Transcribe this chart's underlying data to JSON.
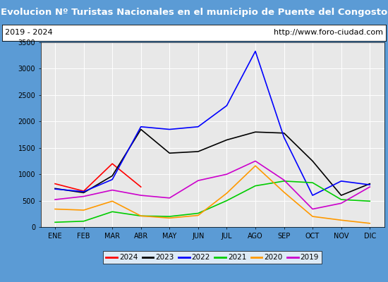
{
  "title": "Evolucion Nº Turistas Nacionales en el municipio de Puente del Congosto",
  "subtitle_left": "2019 - 2024",
  "subtitle_right": "http://www.foro-ciudad.com",
  "months": [
    "ENE",
    "FEB",
    "MAR",
    "ABR",
    "MAY",
    "JUN",
    "JUL",
    "AGO",
    "SEP",
    "OCT",
    "NOV",
    "DIC"
  ],
  "series": {
    "2024": [
      820,
      680,
      1200,
      760,
      null,
      null,
      null,
      null,
      null,
      null,
      null,
      null
    ],
    "2023": [
      730,
      650,
      970,
      1850,
      1400,
      1430,
      1650,
      1800,
      1780,
      1250,
      600,
      820
    ],
    "2022": [
      720,
      670,
      900,
      1900,
      1850,
      1900,
      2300,
      3330,
      1700,
      600,
      870,
      800
    ],
    "2021": [
      90,
      110,
      290,
      210,
      200,
      260,
      500,
      780,
      870,
      840,
      520,
      490
    ],
    "2020": [
      340,
      320,
      490,
      210,
      170,
      220,
      640,
      1160,
      660,
      200,
      130,
      70
    ],
    "2019": [
      520,
      580,
      700,
      600,
      550,
      880,
      1000,
      1250,
      890,
      340,
      450,
      760
    ]
  },
  "colors": {
    "2024": "#ff0000",
    "2023": "#000000",
    "2022": "#0000ff",
    "2021": "#00cc00",
    "2020": "#ff9900",
    "2019": "#cc00cc"
  },
  "ylim": [
    0,
    3500
  ],
  "yticks": [
    0,
    500,
    1000,
    1500,
    2000,
    2500,
    3000,
    3500
  ],
  "title_bg_color": "#5b9bd5",
  "title_text_color": "#ffffff",
  "plot_bg_color": "#e8e8e8",
  "outer_bg_color": "#5b9bd5",
  "subtitle_bg_color": "#ffffff",
  "title_fontsize": 9.5,
  "subtitle_fontsize": 8,
  "axis_fontsize": 7,
  "legend_fontsize": 7.5
}
